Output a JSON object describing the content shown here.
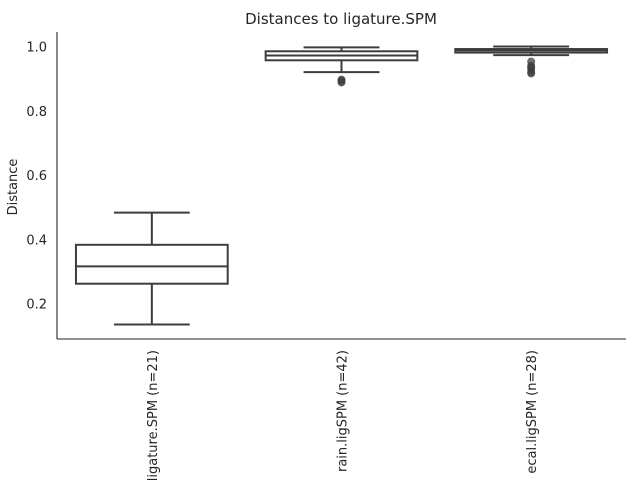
{
  "chart_data": {
    "type": "box",
    "title": "Distances to ligature.SPM",
    "xlabel": "",
    "ylabel": "Distance",
    "ylim": [
      0.09,
      1.045
    ],
    "yticks": [
      "0.2",
      "0.4",
      "0.6",
      "0.8",
      "1.0"
    ],
    "ytick_values": [
      0.2,
      0.4,
      0.6,
      0.8,
      1.0
    ],
    "grid": false,
    "categories": [
      "ligature.SPM (n=21)",
      "rain.ligSPM (n=42)",
      "ecal.ligSPM (n=28)"
    ],
    "boxes": [
      {
        "whisker_low": 0.135,
        "q1": 0.262,
        "median": 0.316,
        "q3": 0.383,
        "whisker_high": 0.483,
        "fliers": []
      },
      {
        "whisker_low": 0.92,
        "q1": 0.957,
        "median": 0.972,
        "q3": 0.985,
        "whisker_high": 0.997,
        "fliers": [
          0.888,
          0.893,
          0.897
        ]
      },
      {
        "whisker_low": 0.973,
        "q1": 0.981,
        "median": 0.988,
        "q3": 0.992,
        "whisker_high": 1.0,
        "fliers": [
          0.916,
          0.92,
          0.928,
          0.935,
          0.94,
          0.953
        ]
      }
    ]
  }
}
